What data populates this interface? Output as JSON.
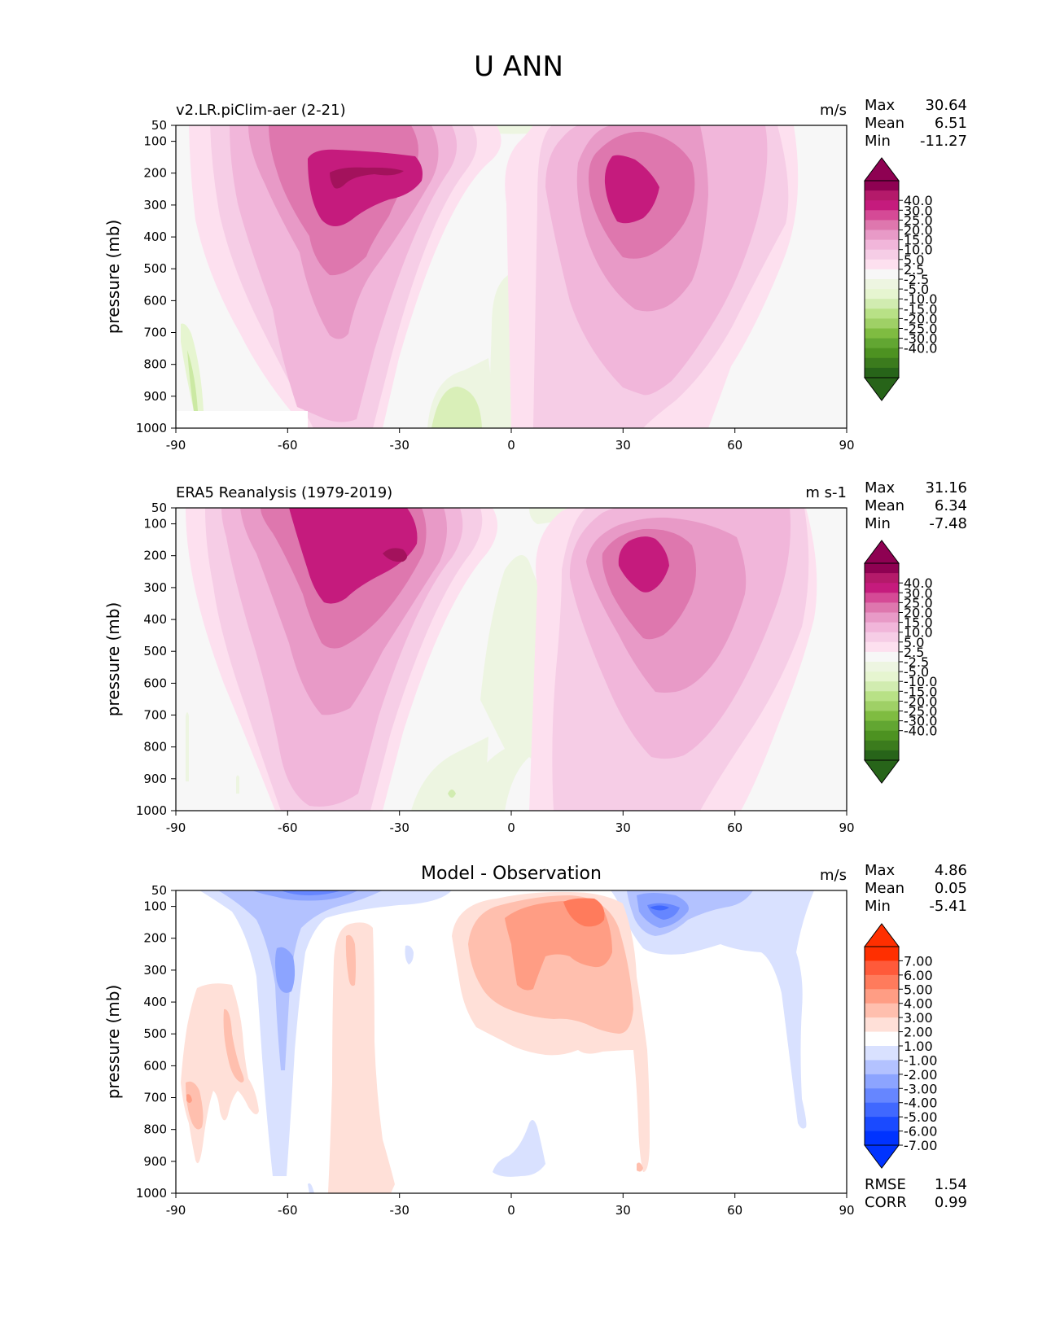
{
  "figure": {
    "title": "U ANN"
  },
  "axis_common": {
    "ylabel": "pressure (mb)",
    "yticks": [
      50,
      100,
      200,
      300,
      400,
      500,
      600,
      700,
      800,
      900,
      1000
    ],
    "xticks": [
      -90,
      -60,
      -30,
      0,
      30,
      60,
      90
    ]
  },
  "panels": [
    {
      "title_left": "v2.LR.piClim-aer (2-21)",
      "title_center": "",
      "units": "m/s",
      "stats": [
        {
          "label": "Max",
          "value": "30.64"
        },
        {
          "label": "Mean",
          "value": "6.51"
        },
        {
          "label": "Min",
          "value": "-11.27"
        }
      ],
      "colorbar_labels": [
        "40.0",
        "30.0",
        "25.0",
        "20.0",
        "15.0",
        "10.0",
        "5.0",
        "2.5",
        "-2.5",
        "-5.0",
        "-10.0",
        "-15.0",
        "-20.0",
        "-25.0",
        "-30.0",
        "-40.0"
      ]
    },
    {
      "title_left": "ERA5 Reanalysis (1979-2019)",
      "title_center": "",
      "units": "m s-1",
      "stats": [
        {
          "label": "Max",
          "value": "31.16"
        },
        {
          "label": "Mean",
          "value": "6.34"
        },
        {
          "label": "Min",
          "value": "-7.48"
        }
      ],
      "colorbar_labels": [
        "40.0",
        "30.0",
        "25.0",
        "20.0",
        "15.0",
        "10.0",
        "5.0",
        "2.5",
        "-2.5",
        "-5.0",
        "-10.0",
        "-15.0",
        "-20.0",
        "-25.0",
        "-30.0",
        "-40.0"
      ]
    },
    {
      "title_left": "",
      "title_center": "Model - Observation",
      "units": "m/s",
      "stats": [
        {
          "label": "Max",
          "value": "4.86"
        },
        {
          "label": "Mean",
          "value": "0.05"
        },
        {
          "label": "Min",
          "value": "-5.41"
        }
      ],
      "colorbar_labels": [
        "7.00",
        "6.00",
        "5.00",
        "4.00",
        "3.00",
        "2.00",
        "1.00",
        "-1.00",
        "-2.00",
        "-3.00",
        "-4.00",
        "-5.00",
        "-6.00",
        "-7.00"
      ],
      "extra_stats": [
        {
          "label": "RMSE",
          "value": "1.54"
        },
        {
          "label": "CORR",
          "value": "0.99"
        }
      ]
    }
  ],
  "colors": {
    "field_levels": [
      "#8e0152",
      "#b41a6a",
      "#c51b7d",
      "#d54a96",
      "#de77ae",
      "#e89ac7",
      "#f1b6da",
      "#f6cde6",
      "#fde0ef",
      "#f7f7f7",
      "#edf5e1",
      "#e6f5d0",
      "#d1ecb0",
      "#b8e186",
      "#9fd066",
      "#7fbc41",
      "#62a632",
      "#4d9221",
      "#3b7b1d",
      "#276419"
    ],
    "diff_levels": [
      "#ff2f00",
      "#ff5a3a",
      "#ff7b5c",
      "#ff9d84",
      "#ffbfae",
      "#ffe0d8",
      "#ffffff",
      "#d9e1ff",
      "#b3c2ff",
      "#8ca4ff",
      "#6686ff",
      "#4068ff",
      "#1a4aff",
      "#0033ff"
    ]
  },
  "chart_data": [
    {
      "type": "contour",
      "title": "v2.LR.piClim-aer (2-21)",
      "units": "m/s",
      "xlabel": "",
      "ylabel": "pressure (mb)",
      "xlim": [
        -90,
        90
      ],
      "ylim": [
        1000,
        50
      ],
      "features": [
        {
          "lat": -44,
          "plev": 200,
          "peak": 30.6
        },
        {
          "lat": 33,
          "plev": 200,
          "peak": 27
        },
        {
          "lat": -12,
          "plev": 950,
          "peak": -11.3
        }
      ]
    },
    {
      "type": "contour",
      "title": "ERA5 Reanalysis (1979-2019)",
      "units": "m s-1",
      "xlabel": "",
      "ylabel": "pressure (mb)",
      "xlim": [
        -90,
        90
      ],
      "ylim": [
        1000,
        50
      ],
      "features": [
        {
          "lat": -42,
          "plev": 200,
          "peak": 31.2
        },
        {
          "lat": 32,
          "plev": 200,
          "peak": 27
        },
        {
          "lat": -12,
          "plev": 950,
          "peak": -7.5
        }
      ]
    },
    {
      "type": "contour",
      "title": "Model - Observation",
      "units": "m/s",
      "xlabel": "",
      "ylabel": "pressure (mb)",
      "xlim": [
        -90,
        90
      ],
      "ylim": [
        1000,
        50
      ],
      "features": [
        {
          "lat": 18,
          "plev": 110,
          "peak": 4.86
        },
        {
          "lat": 37,
          "plev": 90,
          "peak": -5.41
        },
        {
          "lat": -60,
          "plev": 310,
          "peak": -3.5
        }
      ]
    }
  ]
}
